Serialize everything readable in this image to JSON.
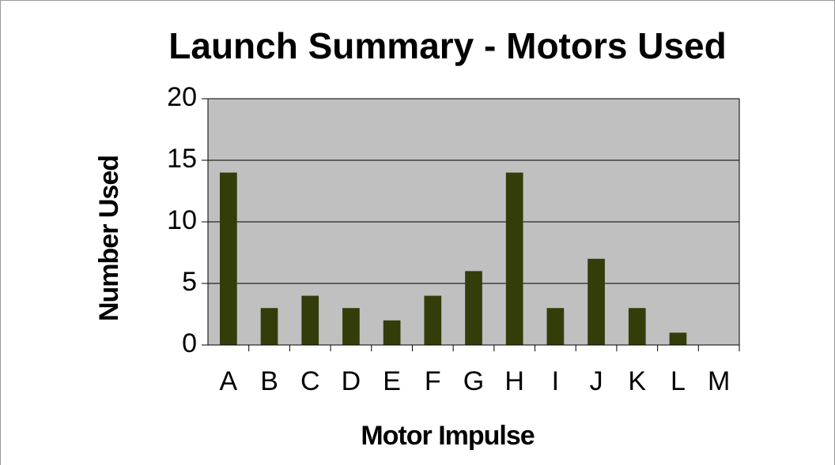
{
  "chart_data": {
    "type": "bar",
    "title": "Launch Summary - Motors Used",
    "x_label": "Motor Impulse",
    "y_label": "Number Used",
    "categories": [
      "A",
      "B",
      "C",
      "D",
      "E",
      "F",
      "G",
      "H",
      "I",
      "J",
      "K",
      "L",
      "M"
    ],
    "values": [
      14,
      3,
      4,
      3,
      2,
      4,
      6,
      14,
      3,
      7,
      3,
      1,
      0
    ],
    "color": "#333d0a",
    "ylim": [
      0,
      20
    ],
    "yticks": [
      0,
      5,
      10,
      15,
      20
    ],
    "grid": true
  }
}
